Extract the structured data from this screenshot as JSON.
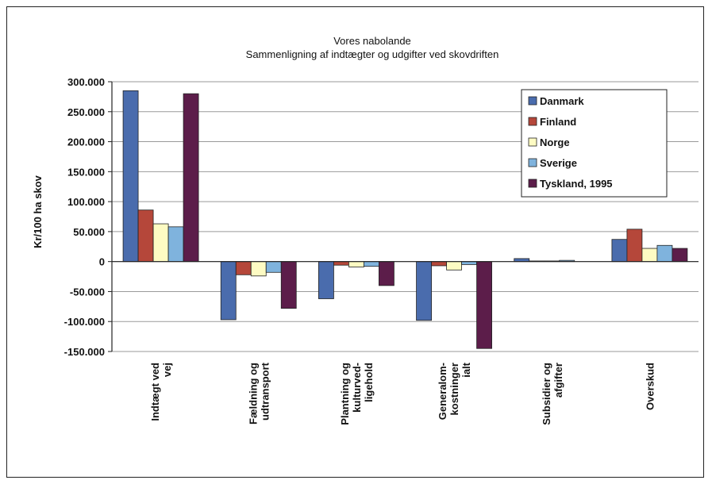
{
  "chart_data": {
    "type": "bar",
    "title": "Vores nabolande",
    "subtitle": "Sammenligning af indtægter og udgifter ved skovdriften",
    "ylabel": "Kr/100 ha skov",
    "xlabel": "",
    "ylim": [
      -150000,
      300000
    ],
    "yticks": [
      300000,
      250000,
      200000,
      150000,
      100000,
      50000,
      0,
      -50000,
      -100000,
      -150000
    ],
    "ytick_labels": [
      "300.000",
      "250.000",
      "200.000",
      "150.000",
      "100.000",
      "50.000",
      "0",
      "-50.000",
      "-100.000",
      "-150.000"
    ],
    "grid": true,
    "legend_position": "top-right",
    "categories": [
      [
        "Indtægt ved",
        "vej"
      ],
      [
        "Fældning og",
        "udtransport"
      ],
      [
        "Plantning og",
        "kulturved-",
        "ligehold"
      ],
      [
        "Generalom-",
        "kostninger",
        "ialt"
      ],
      [
        "Subsidier og",
        "afgifter"
      ],
      [
        "Overskud"
      ]
    ],
    "series": [
      {
        "name": "Danmark",
        "color": "#4a6cad",
        "values": [
          285000,
          -97000,
          -62000,
          -98000,
          5000,
          37000
        ]
      },
      {
        "name": "Finland",
        "color": "#b5473a",
        "values": [
          86000,
          -22000,
          -6000,
          -7000,
          1000,
          54000
        ]
      },
      {
        "name": "Norge",
        "color": "#fdfbc3",
        "values": [
          63000,
          -24000,
          -9000,
          -14000,
          1000,
          22000
        ]
      },
      {
        "name": "Sverige",
        "color": "#7fb3dd",
        "values": [
          58000,
          -18000,
          -8000,
          -5000,
          2000,
          27000
        ]
      },
      {
        "name": "Tyskland, 1995",
        "color": "#5c1d4a",
        "values": [
          280000,
          -78000,
          -40000,
          -145000,
          0,
          22000
        ]
      }
    ]
  }
}
